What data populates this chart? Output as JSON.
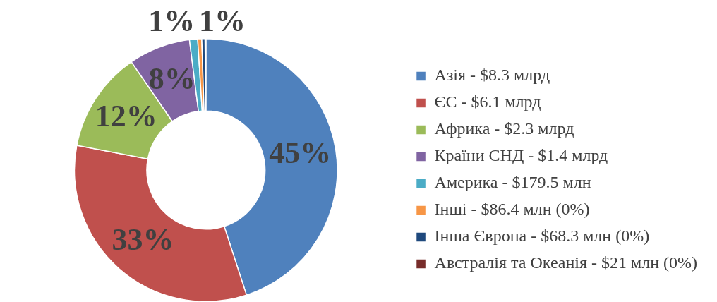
{
  "chart_data": {
    "type": "donut",
    "categories": [
      "Азія - $8.3 млрд",
      "ЄС - $6.1 млрд",
      "Африка - $2.3 млрд",
      "Країни СНД - $1.4 млрд",
      "Америка - $179.5 млн",
      "Інші - $86.4 млн (0%)",
      "Інша Європа - $68.3 млн (0%)",
      "Австралія та Океанія - $21 млн (0%)"
    ],
    "values": [
      45,
      33,
      12.4,
      7.6,
      1,
      0.5,
      0.4,
      0.1
    ],
    "colors": [
      "#4f81bd",
      "#c0504d",
      "#9bbb59",
      "#8064a2",
      "#4bacc6",
      "#f79646",
      "#1f497d",
      "#772c2a"
    ],
    "value_labels": [
      "45%",
      "33%",
      "12%",
      "8%",
      "1%",
      "1%",
      null,
      null
    ],
    "legend": "right"
  }
}
